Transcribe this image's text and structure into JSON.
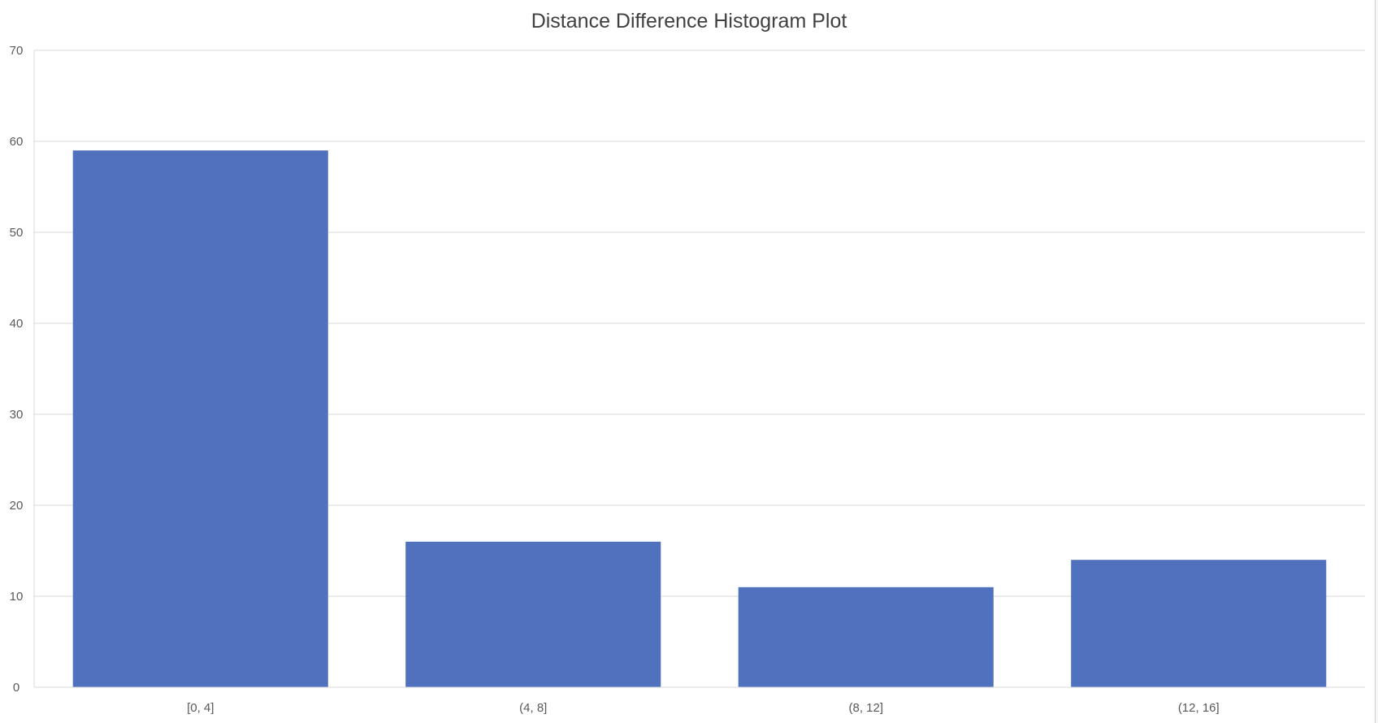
{
  "chart_data": {
    "type": "bar",
    "title": "Distance Difference Histogram Plot",
    "categories": [
      "[0, 4]",
      "(4, 8]",
      "(8, 12]",
      "(12, 16]"
    ],
    "values": [
      59,
      16,
      11,
      14
    ],
    "ylim": [
      0,
      70
    ],
    "yticks": [
      0,
      10,
      20,
      30,
      40,
      50,
      60,
      70
    ],
    "xlabel": "",
    "ylabel": "",
    "grid": true,
    "bar_color": "#4F71BE",
    "gridline_color": "#D9D9D9"
  }
}
